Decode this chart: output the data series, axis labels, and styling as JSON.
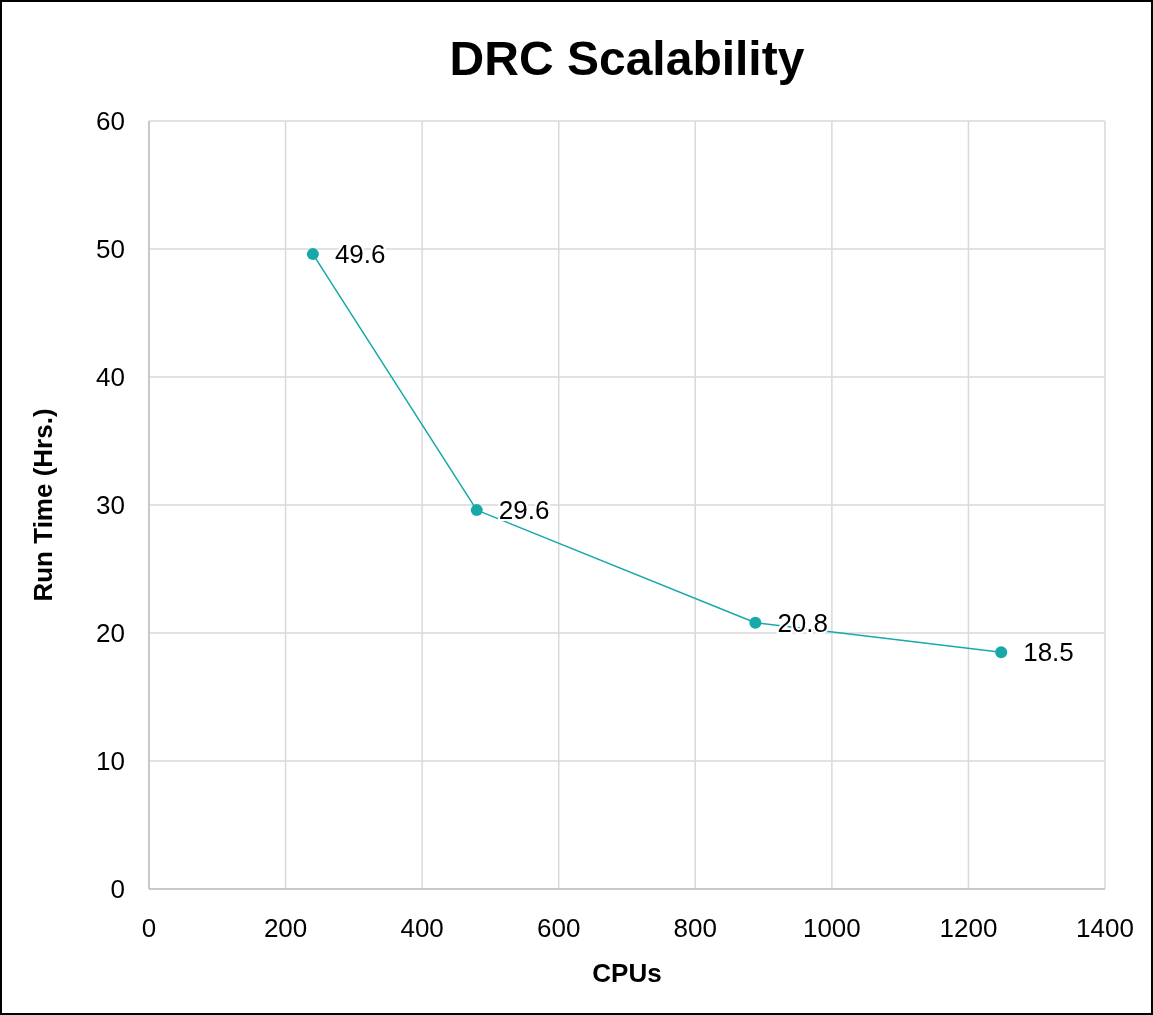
{
  "chart_data": {
    "type": "line",
    "title": "DRC Scalability",
    "xlabel": "CPUs",
    "ylabel": "Run Time (Hrs.)",
    "x": [
      240,
      480,
      888,
      1248
    ],
    "series": [
      {
        "color": "#17a9a9",
        "values": [
          49.6,
          29.6,
          20.8,
          18.5
        ]
      }
    ],
    "xlim": [
      0,
      1400
    ],
    "xticks": [
      0,
      200,
      400,
      600,
      800,
      1000,
      1200,
      1400
    ],
    "ylim": [
      0,
      60
    ],
    "yticks": [
      0,
      10,
      20,
      30,
      40,
      50,
      60
    ],
    "grid": true,
    "marker": "circle",
    "line_style": "solid",
    "data_labels": true
  }
}
